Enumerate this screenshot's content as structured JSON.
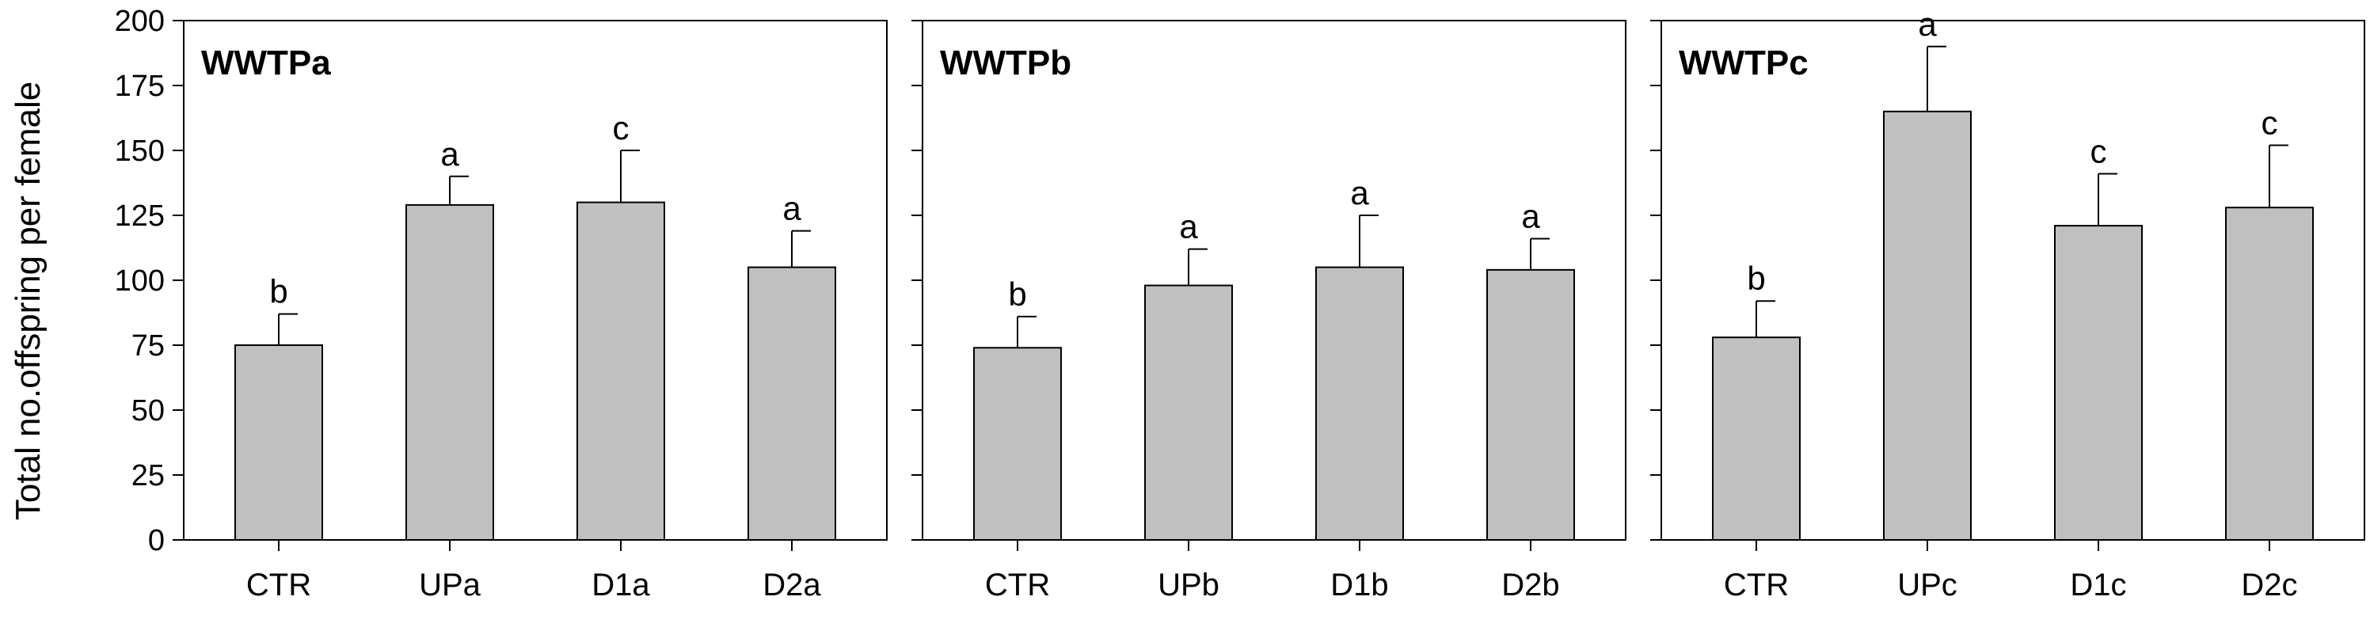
{
  "chart_data": {
    "type": "bar",
    "ylabel": "Total no.offspring per female",
    "ylim": [
      0,
      200
    ],
    "yticks": [
      0,
      25,
      50,
      75,
      100,
      125,
      150,
      175,
      200
    ],
    "bar_color": "#c0c0c0",
    "error_bars": "upper standard deviation",
    "grid": false,
    "panels": [
      {
        "title": "WWTPa",
        "categories": [
          "CTR",
          "UPa",
          "D1a",
          "D2a"
        ],
        "values": [
          75,
          129,
          130,
          105
        ],
        "errors": [
          12,
          11,
          20,
          14
        ],
        "letters": [
          "b",
          "a",
          "c",
          "a"
        ]
      },
      {
        "title": "WWTPb",
        "categories": [
          "CTR",
          "UPb",
          "D1b",
          "D2b"
        ],
        "values": [
          74,
          98,
          105,
          104
        ],
        "errors": [
          12,
          14,
          20,
          12
        ],
        "letters": [
          "b",
          "a",
          "a",
          "a"
        ]
      },
      {
        "title": "WWTPc",
        "categories": [
          "CTR",
          "UPc",
          "D1c",
          "D2c"
        ],
        "values": [
          78,
          165,
          121,
          128
        ],
        "errors": [
          14,
          25,
          20,
          24
        ],
        "letters": [
          "b",
          "a",
          "c",
          "c"
        ]
      }
    ]
  }
}
